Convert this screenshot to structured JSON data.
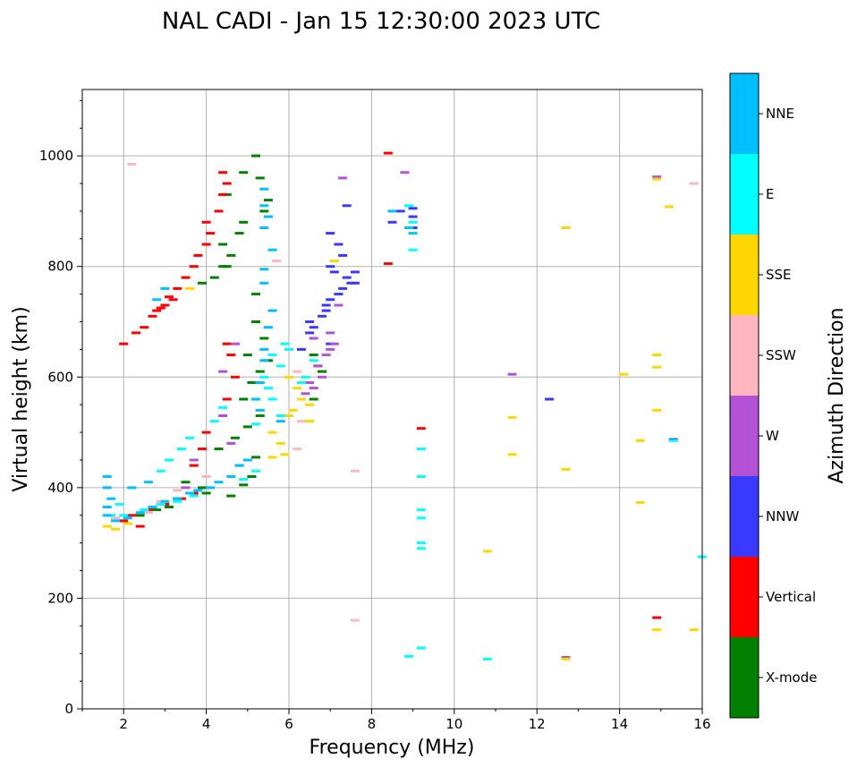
{
  "chart_data": {
    "type": "scatter",
    "title": "NAL CADI - Jan 15 12:30:00 2023 UTC",
    "xlabel": "Frequency (MHz)",
    "ylabel": "Virtual height (km)",
    "xlim": [
      1,
      16
    ],
    "ylim": [
      0,
      1120
    ],
    "xticks": [
      2,
      4,
      6,
      8,
      10,
      12,
      14,
      16
    ],
    "yticks": [
      0,
      200,
      400,
      600,
      800,
      1000
    ],
    "grid": true,
    "colorbar": {
      "label": "Azimuth Direction",
      "categories": [
        "X-mode",
        "Vertical",
        "NNW",
        "W",
        "SSW",
        "SSE",
        "E",
        "NNE"
      ],
      "colors": [
        "#008000",
        "#ff0000",
        "#3a3aff",
        "#b452d6",
        "#ffb6c1",
        "#ffd700",
        "#00ffff",
        "#00bfff"
      ]
    },
    "series": [
      {
        "name": "X-mode",
        "points": [
          [
            4.6,
            385
          ],
          [
            4.9,
            405
          ],
          [
            5.1,
            420
          ],
          [
            4.8,
            440
          ],
          [
            5.2,
            455
          ],
          [
            4.3,
            470
          ],
          [
            4.7,
            490
          ],
          [
            5.0,
            510
          ],
          [
            5.3,
            530
          ],
          [
            4.9,
            560
          ],
          [
            5.1,
            590
          ],
          [
            5.3,
            610
          ],
          [
            5.0,
            640
          ],
          [
            5.4,
            670
          ],
          [
            5.2,
            700
          ],
          [
            5.2,
            750
          ],
          [
            4.2,
            780
          ],
          [
            4.5,
            800
          ],
          [
            4.6,
            820
          ],
          [
            4.4,
            840
          ],
          [
            4.8,
            860
          ],
          [
            4.9,
            880
          ],
          [
            5.4,
            900
          ],
          [
            5.5,
            920
          ],
          [
            4.5,
            930
          ],
          [
            5.3,
            960
          ],
          [
            4.9,
            970
          ],
          [
            5.2,
            1000
          ],
          [
            4.4,
            800
          ],
          [
            3.9,
            770
          ],
          [
            3.5,
            410
          ],
          [
            3.9,
            400
          ],
          [
            4.0,
            390
          ],
          [
            3.3,
            380
          ],
          [
            2.4,
            350
          ],
          [
            2.8,
            360
          ],
          [
            3.1,
            365
          ],
          [
            5.5,
            630
          ],
          [
            6.6,
            640
          ],
          [
            6.8,
            610
          ],
          [
            6.6,
            560
          ]
        ]
      },
      {
        "name": "Vertical",
        "points": [
          [
            2.0,
            660
          ],
          [
            2.3,
            680
          ],
          [
            2.5,
            690
          ],
          [
            2.7,
            710
          ],
          [
            2.8,
            720
          ],
          [
            3.0,
            730
          ],
          [
            3.2,
            740
          ],
          [
            3.3,
            760
          ],
          [
            3.5,
            780
          ],
          [
            3.7,
            800
          ],
          [
            3.8,
            820
          ],
          [
            4.0,
            840
          ],
          [
            4.1,
            860
          ],
          [
            4.0,
            880
          ],
          [
            4.3,
            900
          ],
          [
            4.4,
            930
          ],
          [
            4.5,
            950
          ],
          [
            4.4,
            970
          ],
          [
            3.7,
            440
          ],
          [
            3.9,
            470
          ],
          [
            4.0,
            500
          ],
          [
            4.5,
            560
          ],
          [
            4.7,
            600
          ],
          [
            4.6,
            640
          ],
          [
            4.5,
            660
          ],
          [
            2.2,
            350
          ],
          [
            2.6,
            360
          ],
          [
            3.0,
            370
          ],
          [
            3.4,
            380
          ],
          [
            3.7,
            390
          ],
          [
            2.4,
            330
          ],
          [
            2.0,
            340
          ],
          [
            3.1,
            745
          ],
          [
            2.9,
            725
          ],
          [
            8.4,
            1005
          ],
          [
            8.4,
            805
          ],
          [
            9.2,
            507
          ],
          [
            14.9,
            165
          ]
        ]
      },
      {
        "name": "NNW",
        "points": [
          [
            6.5,
            700
          ],
          [
            6.6,
            690
          ],
          [
            6.8,
            710
          ],
          [
            6.9,
            730
          ],
          [
            7.0,
            740
          ],
          [
            7.2,
            750
          ],
          [
            7.3,
            760
          ],
          [
            7.5,
            770
          ],
          [
            7.4,
            780
          ],
          [
            7.1,
            790
          ],
          [
            7.0,
            800
          ],
          [
            7.3,
            820
          ],
          [
            7.2,
            840
          ],
          [
            7.0,
            860
          ],
          [
            7.4,
            910
          ],
          [
            8.7,
            900
          ],
          [
            9.0,
            890
          ],
          [
            9.0,
            870
          ],
          [
            9.0,
            905
          ],
          [
            8.5,
            880
          ],
          [
            12.3,
            560
          ],
          [
            6.3,
            650
          ],
          [
            6.7,
            620
          ],
          [
            7.0,
            660
          ],
          [
            7.6,
            790
          ],
          [
            7.6,
            770
          ],
          [
            15.3,
            487
          ],
          [
            6.9,
            720
          ],
          [
            6.5,
            680
          ]
        ]
      },
      {
        "name": "W",
        "points": [
          [
            6.5,
            590
          ],
          [
            6.6,
            580
          ],
          [
            6.8,
            600
          ],
          [
            6.9,
            640
          ],
          [
            7.0,
            650
          ],
          [
            7.1,
            660
          ],
          [
            7.0,
            680
          ],
          [
            6.7,
            620
          ],
          [
            6.4,
            570
          ],
          [
            7.3,
            960
          ],
          [
            8.8,
            970
          ],
          [
            4.4,
            530
          ],
          [
            4.4,
            610
          ],
          [
            4.7,
            660
          ],
          [
            4.6,
            480
          ],
          [
            3.7,
            450
          ],
          [
            3.5,
            400
          ],
          [
            11.4,
            605
          ],
          [
            14.9,
            962
          ],
          [
            12.7,
            93
          ],
          [
            6.6,
            670
          ],
          [
            7.2,
            730
          ]
        ]
      },
      {
        "name": "SSW",
        "points": [
          [
            2.2,
            985
          ],
          [
            7.6,
            430
          ],
          [
            7.6,
            160
          ],
          [
            15.8,
            950
          ],
          [
            5.7,
            810
          ],
          [
            4.0,
            420
          ],
          [
            3.3,
            395
          ],
          [
            2.9,
            375
          ],
          [
            1.8,
            345
          ],
          [
            2.6,
            355
          ],
          [
            6.2,
            470
          ],
          [
            6.3,
            520
          ],
          [
            6.2,
            610
          ]
        ]
      },
      {
        "name": "SSE",
        "points": [
          [
            6.1,
            540
          ],
          [
            6.3,
            560
          ],
          [
            6.5,
            550
          ],
          [
            6.0,
            530
          ],
          [
            5.8,
            480
          ],
          [
            5.9,
            460
          ],
          [
            5.6,
            455
          ],
          [
            7.1,
            810
          ],
          [
            11.4,
            527
          ],
          [
            11.4,
            460
          ],
          [
            12.7,
            870
          ],
          [
            14.1,
            605
          ],
          [
            14.5,
            485
          ],
          [
            14.5,
            373
          ],
          [
            14.9,
            640
          ],
          [
            14.9,
            618
          ],
          [
            14.9,
            540
          ],
          [
            14.9,
            958
          ],
          [
            15.2,
            908
          ],
          [
            14.9,
            143
          ],
          [
            15.8,
            143
          ],
          [
            10.8,
            285
          ],
          [
            12.7,
            433
          ],
          [
            12.7,
            90
          ],
          [
            6.5,
            520
          ],
          [
            1.8,
            325
          ],
          [
            2.1,
            335
          ],
          [
            1.6,
            330
          ],
          [
            6.0,
            600
          ],
          [
            6.2,
            580
          ],
          [
            5.6,
            500
          ],
          [
            3.6,
            760
          ]
        ]
      },
      {
        "name": "E",
        "points": [
          [
            5.6,
            640
          ],
          [
            5.8,
            620
          ],
          [
            5.9,
            660
          ],
          [
            6.0,
            650
          ],
          [
            5.4,
            600
          ],
          [
            5.6,
            560
          ],
          [
            5.8,
            530
          ],
          [
            5.2,
            430
          ],
          [
            4.9,
            415
          ],
          [
            3.1,
            450
          ],
          [
            2.9,
            430
          ],
          [
            3.4,
            470
          ],
          [
            3.6,
            490
          ],
          [
            4.2,
            520
          ],
          [
            4.4,
            545
          ],
          [
            6.3,
            590
          ],
          [
            6.4,
            600
          ],
          [
            6.6,
            630
          ],
          [
            5.2,
            515
          ],
          [
            5.5,
            580
          ],
          [
            8.9,
            910
          ],
          [
            9.0,
            880
          ],
          [
            9.0,
            830
          ],
          [
            9.2,
            470
          ],
          [
            9.2,
            420
          ],
          [
            9.2,
            360
          ],
          [
            9.2,
            345
          ],
          [
            9.2,
            300
          ],
          [
            9.2,
            290
          ],
          [
            9.2,
            110
          ],
          [
            8.9,
            95
          ],
          [
            10.8,
            90
          ],
          [
            15.3,
            485
          ],
          [
            16.0,
            275
          ],
          [
            2.0,
            350
          ],
          [
            2.5,
            360
          ],
          [
            2.9,
            370
          ],
          [
            3.3,
            375
          ],
          [
            3.7,
            385
          ],
          [
            1.7,
            350
          ],
          [
            1.9,
            370
          ]
        ]
      },
      {
        "name": "NNE",
        "points": [
          [
            5.4,
            940
          ],
          [
            5.4,
            910
          ],
          [
            5.5,
            890
          ],
          [
            5.4,
            870
          ],
          [
            5.6,
            830
          ],
          [
            5.4,
            795
          ],
          [
            5.4,
            770
          ],
          [
            5.6,
            720
          ],
          [
            5.5,
            690
          ],
          [
            5.4,
            650
          ],
          [
            5.4,
            630
          ],
          [
            5.3,
            590
          ],
          [
            5.2,
            560
          ],
          [
            5.3,
            540
          ],
          [
            5.0,
            450
          ],
          [
            4.8,
            440
          ],
          [
            4.6,
            420
          ],
          [
            4.3,
            410
          ],
          [
            4.1,
            400
          ],
          [
            3.8,
            395
          ],
          [
            3.6,
            390
          ],
          [
            3.3,
            380
          ],
          [
            3.0,
            375
          ],
          [
            2.7,
            365
          ],
          [
            2.4,
            355
          ],
          [
            2.1,
            345
          ],
          [
            1.8,
            340
          ],
          [
            1.6,
            350
          ],
          [
            1.6,
            365
          ],
          [
            1.7,
            380
          ],
          [
            1.6,
            400
          ],
          [
            1.6,
            420
          ],
          [
            2.2,
            400
          ],
          [
            2.6,
            410
          ],
          [
            8.9,
            870
          ],
          [
            9.0,
            860
          ],
          [
            8.5,
            900
          ],
          [
            3.0,
            760
          ],
          [
            2.8,
            740
          ],
          [
            5.8,
            520
          ]
        ]
      }
    ]
  }
}
